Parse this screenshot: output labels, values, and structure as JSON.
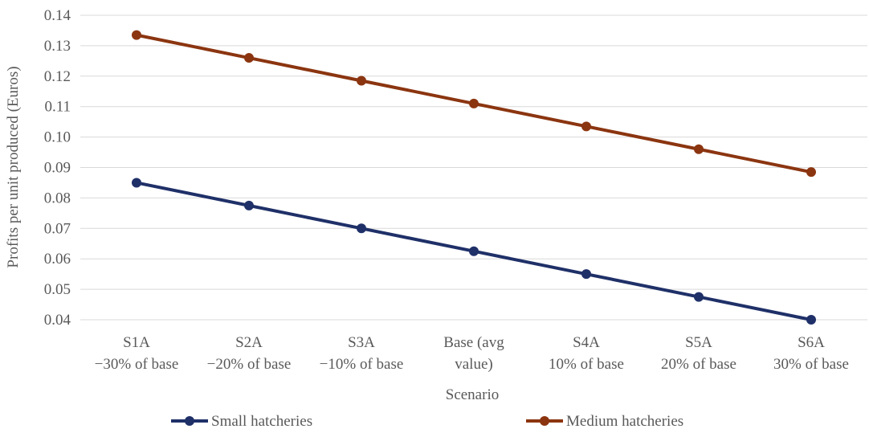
{
  "chart_data": {
    "type": "line",
    "xlabel": "Scenario",
    "ylabel": "Profits per unit produced (Euros)",
    "ylim": [
      0.04,
      0.14
    ],
    "yticks": [
      "0.04",
      "0.05",
      "0.06",
      "0.07",
      "0.08",
      "0.09",
      "0.10",
      "0.11",
      "0.12",
      "0.13",
      "0.14"
    ],
    "categories": [
      [
        "S1A",
        "−30% of base"
      ],
      [
        "S2A",
        "−20% of base"
      ],
      [
        "S3A",
        "−10% of base"
      ],
      [
        "Base (avg",
        "value)"
      ],
      [
        "S4A",
        "10% of base"
      ],
      [
        "S5A",
        "20% of base"
      ],
      [
        "S6A",
        "30% of base"
      ]
    ],
    "series": [
      {
        "name": "Small hatcheries",
        "color": "#1f3068",
        "values": [
          0.085,
          0.0775,
          0.07,
          0.0625,
          0.055,
          0.0475,
          0.04
        ]
      },
      {
        "name": "Medium hatcheries",
        "color": "#8b3510",
        "values": [
          0.1335,
          0.126,
          0.1185,
          0.111,
          0.1035,
          0.096,
          0.0885
        ]
      }
    ],
    "grid": true,
    "legend_position": "bottom"
  }
}
